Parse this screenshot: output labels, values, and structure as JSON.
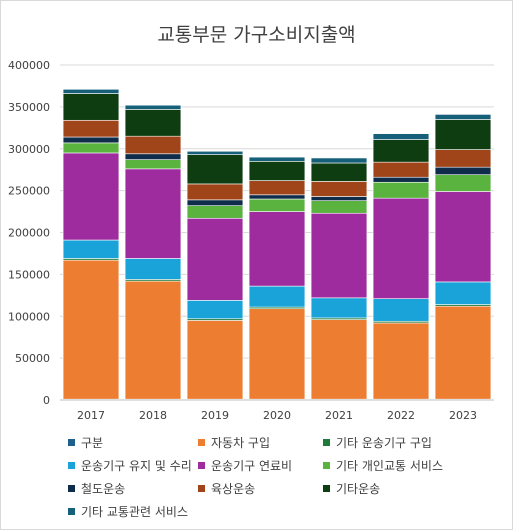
{
  "chart_data": {
    "type": "bar",
    "stacked": true,
    "title": "교통부문 가구소비지출액",
    "xlabel": "",
    "ylabel": "",
    "ylim": [
      0,
      400000
    ],
    "yticks": [
      0,
      50000,
      100000,
      150000,
      200000,
      250000,
      300000,
      350000,
      400000
    ],
    "grid": true,
    "legend_position": "bottom",
    "categories": [
      "2017",
      "2018",
      "2019",
      "2020",
      "2021",
      "2022",
      "2023"
    ],
    "series": [
      {
        "name": "구분",
        "color": "#1f5f8b",
        "values": [
          1000,
          1000,
          1000,
          1000,
          1000,
          1000,
          1000
        ]
      },
      {
        "name": "자동차 구입",
        "color": "#ed7d31",
        "values": [
          166000,
          141000,
          94000,
          108000,
          95000,
          91000,
          111000
        ]
      },
      {
        "name": "기타 운송기구 구입",
        "color": "#1e7b3a",
        "values": [
          2000,
          2000,
          2000,
          2000,
          2000,
          2000,
          2000
        ]
      },
      {
        "name": "운송기구 유지 및 수리",
        "color": "#1aa3d9",
        "values": [
          22000,
          25000,
          22000,
          25000,
          24000,
          27000,
          27000
        ]
      },
      {
        "name": "운송기구 연료비",
        "color": "#9e2c9e",
        "values": [
          104000,
          107000,
          98000,
          89000,
          101000,
          120000,
          108000
        ]
      },
      {
        "name": "기타 개인교통 서비스",
        "color": "#5ab23f",
        "values": [
          12000,
          11000,
          15000,
          15000,
          15000,
          19000,
          20000
        ]
      },
      {
        "name": "철도운송",
        "color": "#0f2d4a",
        "values": [
          7000,
          7000,
          7000,
          5000,
          5000,
          6000,
          9000
        ]
      },
      {
        "name": "육상운송",
        "color": "#a0451a",
        "values": [
          20000,
          21000,
          19000,
          17000,
          18000,
          18000,
          21000
        ]
      },
      {
        "name": "기타운송",
        "color": "#0e3d12",
        "values": [
          32000,
          32000,
          35000,
          23000,
          22000,
          27000,
          36000
        ]
      },
      {
        "name": "기타 교통관련 서비스",
        "color": "#16607a",
        "values": [
          5000,
          5000,
          4000,
          5000,
          6000,
          7000,
          6000
        ]
      }
    ]
  }
}
